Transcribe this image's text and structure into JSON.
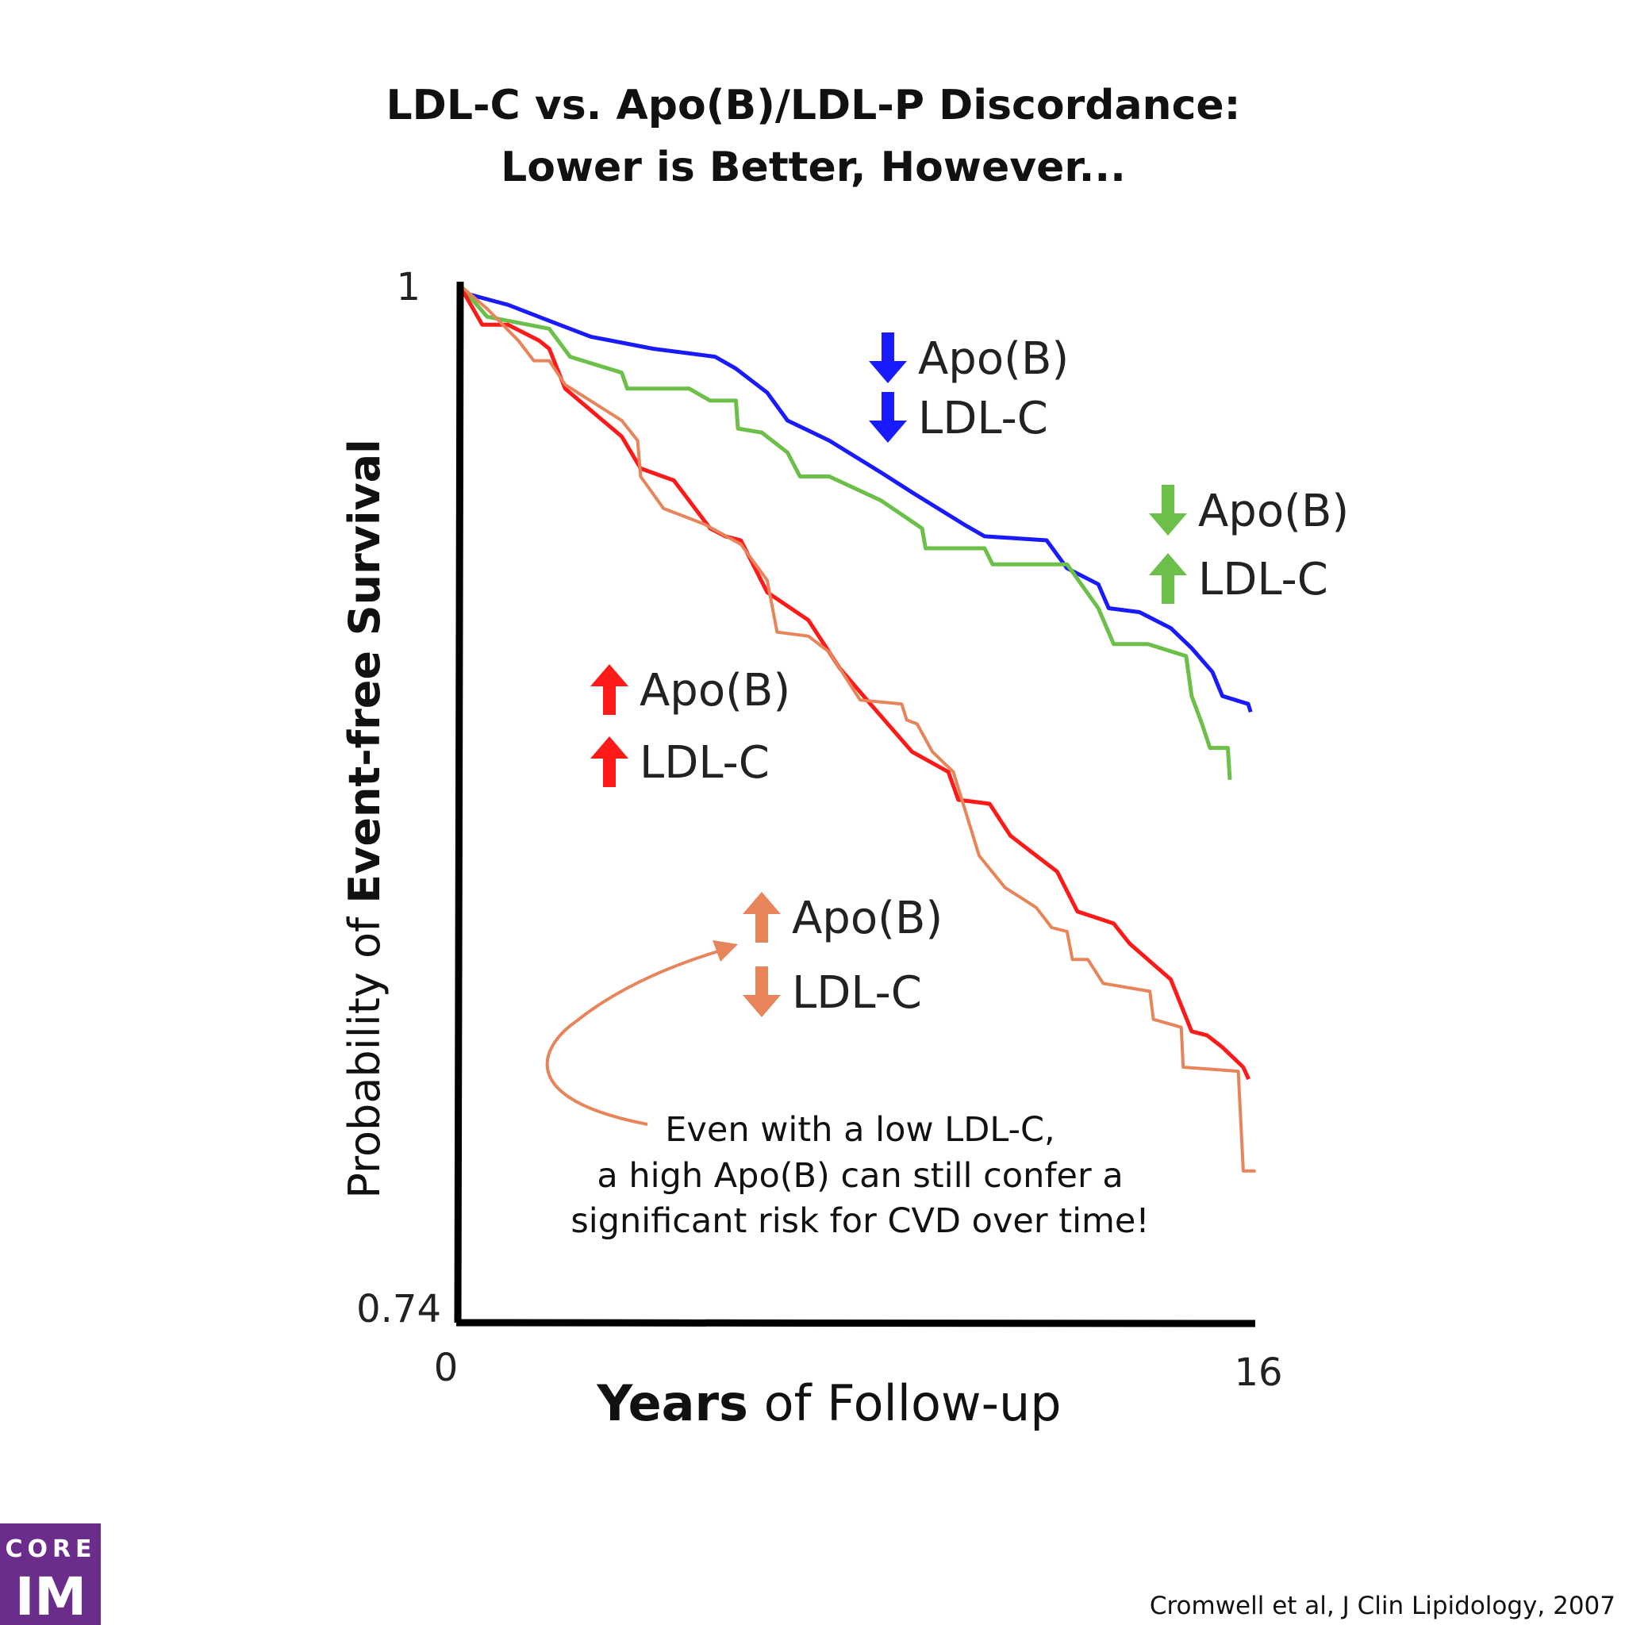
{
  "chart_data": {
    "type": "line",
    "title": [
      "LDL-C vs. Apo(B)/LDL-P Discordance:",
      "Lower is Better, However..."
    ],
    "xlabel_bold": "Years",
    "xlabel_rest": " of Follow-up",
    "ylabel_rest": "Probability of ",
    "ylabel_bold": "Event-free Survival",
    "xlim": [
      0,
      16
    ],
    "ylim": [
      0.74,
      1
    ],
    "x_ticks": [
      "0",
      "16"
    ],
    "y_ticks": [
      "0.74",
      "1"
    ],
    "grid": false,
    "series": [
      {
        "name": "Low Apo(B) / Low LDL-C",
        "color": "#1a1aff",
        "legend": [
          {
            "dir": "down",
            "label": "Apo(B)"
          },
          {
            "dir": "down",
            "label": "LDL-C"
          }
        ],
        "points": [
          [
            0,
            1
          ],
          [
            0.08,
            0.998
          ],
          [
            0.98,
            0.995
          ],
          [
            1.81,
            0.991
          ],
          [
            2.65,
            0.987
          ],
          [
            3.9,
            0.984
          ],
          [
            5.15,
            0.982
          ],
          [
            5.57,
            0.979
          ],
          [
            6.2,
            0.973
          ],
          [
            6.61,
            0.966
          ],
          [
            7.45,
            0.961
          ],
          [
            8.49,
            0.953
          ],
          [
            9.12,
            0.948
          ],
          [
            10.16,
            0.94
          ],
          [
            10.58,
            0.937
          ],
          [
            11.83,
            0.936
          ],
          [
            12.24,
            0.929
          ],
          [
            12.87,
            0.925
          ],
          [
            13.08,
            0.919
          ],
          [
            13.7,
            0.918
          ],
          [
            14.33,
            0.914
          ],
          [
            14.75,
            0.909
          ],
          [
            15.17,
            0.903
          ],
          [
            15.37,
            0.897
          ],
          [
            15.89,
            0.895
          ],
          [
            15.94,
            0.893
          ]
        ]
      },
      {
        "name": "Low Apo(B) / High LDL-C",
        "color": "#6cc04a",
        "legend": [
          {
            "dir": "down",
            "label": "Apo(B)"
          },
          {
            "dir": "up",
            "label": "LDL-C"
          }
        ],
        "points": [
          [
            0,
            1
          ],
          [
            0.56,
            0.992
          ],
          [
            1.81,
            0.989
          ],
          [
            2.23,
            0.982
          ],
          [
            3.27,
            0.978
          ],
          [
            3.38,
            0.974
          ],
          [
            4.63,
            0.974
          ],
          [
            5.05,
            0.971
          ],
          [
            5.57,
            0.971
          ],
          [
            5.61,
            0.964
          ],
          [
            6.09,
            0.963
          ],
          [
            6.61,
            0.958
          ],
          [
            6.86,
            0.952
          ],
          [
            7.45,
            0.952
          ],
          [
            8.49,
            0.946
          ],
          [
            9.32,
            0.939
          ],
          [
            9.39,
            0.934
          ],
          [
            10.58,
            0.934
          ],
          [
            10.74,
            0.93
          ],
          [
            12.24,
            0.93
          ],
          [
            12.87,
            0.919
          ],
          [
            13.18,
            0.91
          ],
          [
            13.87,
            0.91
          ],
          [
            14.64,
            0.907
          ],
          [
            14.75,
            0.897
          ],
          [
            14.96,
            0.89
          ],
          [
            15.12,
            0.884
          ],
          [
            15.48,
            0.884
          ],
          [
            15.52,
            0.876
          ]
        ]
      },
      {
        "name": "High Apo(B) / High LDL-C",
        "color": "#ff1a1a",
        "legend": [
          {
            "dir": "up",
            "label": "Apo(B)"
          },
          {
            "dir": "up",
            "label": "LDL-C"
          }
        ],
        "points": [
          [
            0,
            1
          ],
          [
            0.46,
            0.99
          ],
          [
            0.98,
            0.99
          ],
          [
            1.61,
            0.986
          ],
          [
            1.81,
            0.984
          ],
          [
            2.13,
            0.974
          ],
          [
            3.27,
            0.962
          ],
          [
            3.65,
            0.954
          ],
          [
            4.32,
            0.951
          ],
          [
            5.05,
            0.939
          ],
          [
            5.36,
            0.937
          ],
          [
            5.67,
            0.936
          ],
          [
            6.2,
            0.923
          ],
          [
            7.03,
            0.916
          ],
          [
            7.66,
            0.904
          ],
          [
            8.28,
            0.895
          ],
          [
            9.12,
            0.883
          ],
          [
            9.85,
            0.878
          ],
          [
            10.05,
            0.871
          ],
          [
            10.68,
            0.87
          ],
          [
            11.1,
            0.862
          ],
          [
            11.62,
            0.857
          ],
          [
            12.04,
            0.853
          ],
          [
            12.45,
            0.843
          ],
          [
            13.18,
            0.84
          ],
          [
            13.5,
            0.835
          ],
          [
            14.33,
            0.826
          ],
          [
            14.75,
            0.813
          ],
          [
            15.06,
            0.812
          ],
          [
            15.37,
            0.809
          ],
          [
            15.79,
            0.804
          ],
          [
            15.9,
            0.801
          ]
        ]
      },
      {
        "name": "High Apo(B) / Low LDL-C",
        "color": "#e8845a",
        "legend": [
          {
            "dir": "up",
            "label": "Apo(B)"
          },
          {
            "dir": "down",
            "label": "LDL-C"
          }
        ],
        "points": [
          [
            0,
            1
          ],
          [
            0.56,
            0.994
          ],
          [
            1.19,
            0.986
          ],
          [
            1.5,
            0.981
          ],
          [
            1.81,
            0.981
          ],
          [
            2.13,
            0.975
          ],
          [
            3.27,
            0.966
          ],
          [
            3.59,
            0.961
          ],
          [
            3.65,
            0.952
          ],
          [
            4.11,
            0.944
          ],
          [
            4.94,
            0.94
          ],
          [
            5.67,
            0.935
          ],
          [
            6.2,
            0.926
          ],
          [
            6.4,
            0.913
          ],
          [
            7.03,
            0.912
          ],
          [
            7.45,
            0.908
          ],
          [
            8.07,
            0.896
          ],
          [
            8.91,
            0.895
          ],
          [
            9.01,
            0.891
          ],
          [
            9.22,
            0.89
          ],
          [
            9.53,
            0.883
          ],
          [
            9.95,
            0.878
          ],
          [
            10.47,
            0.857
          ],
          [
            10.99,
            0.849
          ],
          [
            11.62,
            0.844
          ],
          [
            11.93,
            0.839
          ],
          [
            12.24,
            0.838
          ],
          [
            12.35,
            0.831
          ],
          [
            12.66,
            0.831
          ],
          [
            12.97,
            0.825
          ],
          [
            13.91,
            0.823
          ],
          [
            13.98,
            0.816
          ],
          [
            14.54,
            0.814
          ],
          [
            14.58,
            0.804
          ],
          [
            15.69,
            0.803
          ],
          [
            15.79,
            0.778
          ],
          [
            16.04,
            0.778
          ]
        ]
      }
    ],
    "annotation": [
      "Even with a low LDL-C,",
      "a high Apo(B) can still confer a",
      "significant risk for CVD over time!"
    ]
  },
  "logo": {
    "line1": "CORE",
    "line2": "IM",
    "color": "#6b2d8c"
  },
  "citation": "Cromwell et al, J Clin Lipidology, 2007"
}
